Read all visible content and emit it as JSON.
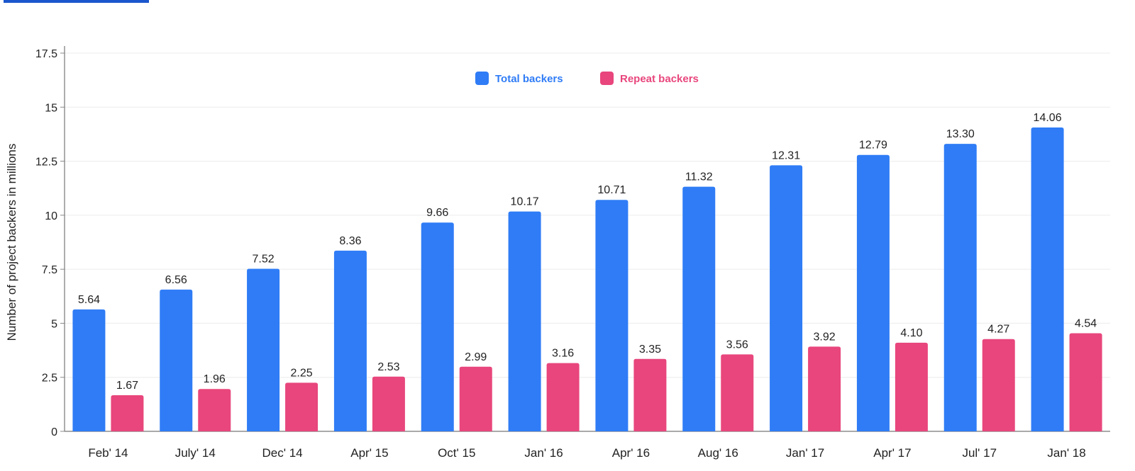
{
  "chart_data": {
    "type": "bar",
    "categories": [
      "Feb' 14",
      "July' 14",
      "Dec' 14",
      "Apr' 15",
      "Oct' 15",
      "Jan' 16",
      "Apr' 16",
      "Aug' 16",
      "Jan' 17",
      "Apr' 17",
      "Jul' 17",
      "Jan' 18"
    ],
    "series": [
      {
        "name": "Total backers",
        "color": "#2f7cf6",
        "values": [
          5.64,
          6.56,
          7.52,
          8.36,
          9.66,
          10.17,
          10.71,
          11.32,
          12.31,
          12.79,
          13.3,
          14.06
        ],
        "labels": [
          "5.64",
          "6.56",
          "7.52",
          "8.36",
          "9.66",
          "10.17",
          "10.71",
          "11.32",
          "12.31",
          "12.79",
          "13.30",
          "14.06"
        ]
      },
      {
        "name": "Repeat backers",
        "color": "#e8467c",
        "values": [
          1.67,
          1.96,
          2.25,
          2.53,
          2.99,
          3.16,
          3.35,
          3.56,
          3.92,
          4.1,
          4.27,
          4.54
        ],
        "labels": [
          "1.67",
          "1.96",
          "2.25",
          "2.53",
          "2.99",
          "3.16",
          "3.35",
          "3.56",
          "3.92",
          "4.10",
          "4.27",
          "4.54"
        ]
      }
    ],
    "yticks": [
      0,
      2.5,
      5,
      7.5,
      10,
      12.5,
      15,
      17.5
    ],
    "ytick_labels": [
      "0",
      "2.5",
      "5",
      "7.5",
      "10",
      "12.5",
      "15",
      "17.5"
    ],
    "ylim": [
      0,
      17.5
    ],
    "ylabel": "Number of project backers in millions",
    "xlabel": "",
    "title": "",
    "grid": true,
    "legend_position": "top-center"
  }
}
